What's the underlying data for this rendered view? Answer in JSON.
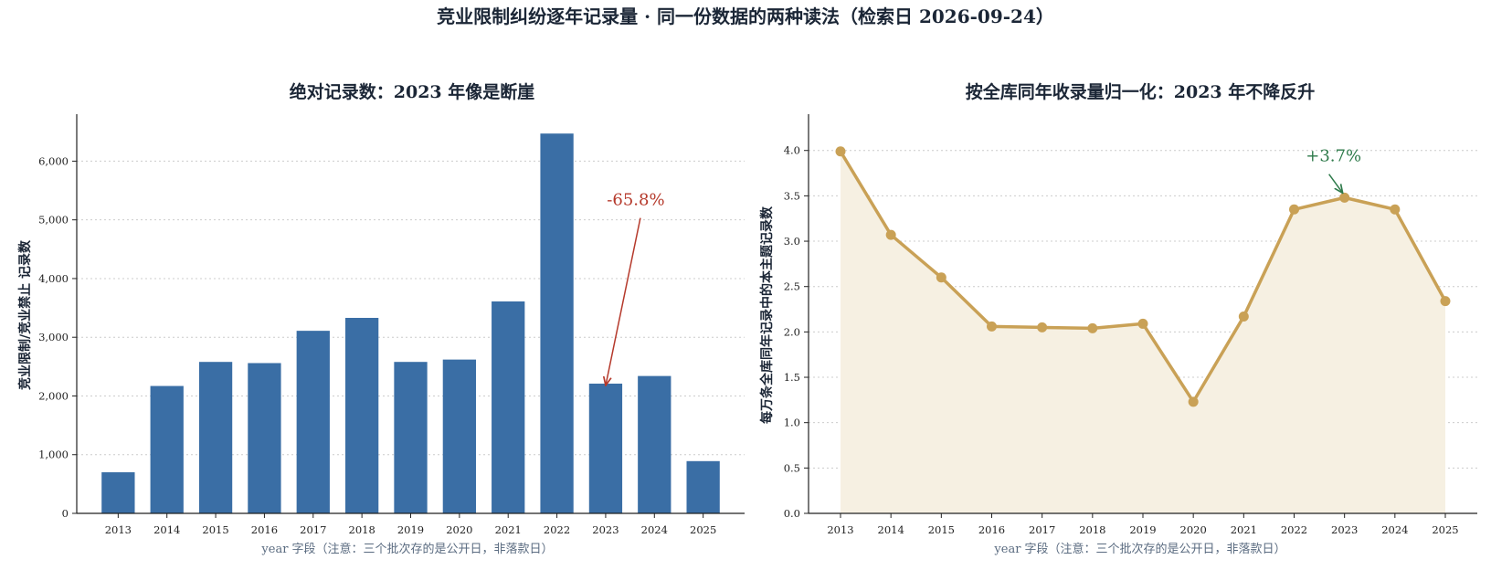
{
  "figure": {
    "suptitle": "竞业限制纠纷逐年记录量 · 同一份数据的两种读法（检索日 2026-09-24）",
    "colors": {
      "bar": "#3a6ea5",
      "line": "#c9a156",
      "fill": "#f6f0e2",
      "annotation_down": "#b5392b",
      "annotation_up": "#2e7a4a"
    }
  },
  "chart_data": [
    {
      "type": "bar",
      "title": "绝对记录数：2023 年像是断崖",
      "xlabel": "year 字段（注意：三个批次存的是公开日，非落款日）",
      "ylabel": "竞业限制/竞业禁止 记录数",
      "categories": [
        "2013",
        "2014",
        "2015",
        "2016",
        "2017",
        "2018",
        "2019",
        "2020",
        "2021",
        "2022",
        "2023",
        "2024",
        "2025"
      ],
      "values": [
        700,
        2170,
        2580,
        2560,
        3110,
        3330,
        2580,
        2620,
        3610,
        6470,
        2210,
        2340,
        890
      ],
      "ylim": [
        0,
        6800
      ],
      "yticks": [
        0,
        1000,
        2000,
        3000,
        4000,
        5000,
        6000
      ],
      "ytick_labels": [
        "0",
        "1,000",
        "2,000",
        "3,000",
        "4,000",
        "5,000",
        "6,000"
      ],
      "grid": "y",
      "annotation": {
        "text": "-65.8%",
        "target_category": "2023",
        "target_value": 2210,
        "text_value": 5250
      }
    },
    {
      "type": "area",
      "title": "按全库同年收录量归一化：2023 年不降反升",
      "xlabel": "year 字段（注意：三个批次存的是公开日，非落款日）",
      "ylabel": "每万条全库同年记录中的本主题记录数",
      "categories": [
        "2013",
        "2014",
        "2015",
        "2016",
        "2017",
        "2018",
        "2019",
        "2020",
        "2021",
        "2022",
        "2023",
        "2024",
        "2025"
      ],
      "values": [
        3.99,
        3.07,
        2.6,
        2.06,
        2.05,
        2.04,
        2.09,
        1.23,
        2.17,
        3.35,
        3.48,
        3.35,
        2.34
      ],
      "ylim": [
        0,
        4.4
      ],
      "yticks": [
        0,
        0.5,
        1.0,
        1.5,
        2.0,
        2.5,
        3.0,
        3.5,
        4.0
      ],
      "ytick_labels": [
        "0.0",
        "0.5",
        "1.0",
        "1.5",
        "2.0",
        "2.5",
        "3.0",
        "3.5",
        "4.0"
      ],
      "grid": "y",
      "annotation": {
        "text": "+3.7%",
        "target_category": "2023",
        "target_value": 3.48,
        "text_value": 3.88
      }
    }
  ]
}
